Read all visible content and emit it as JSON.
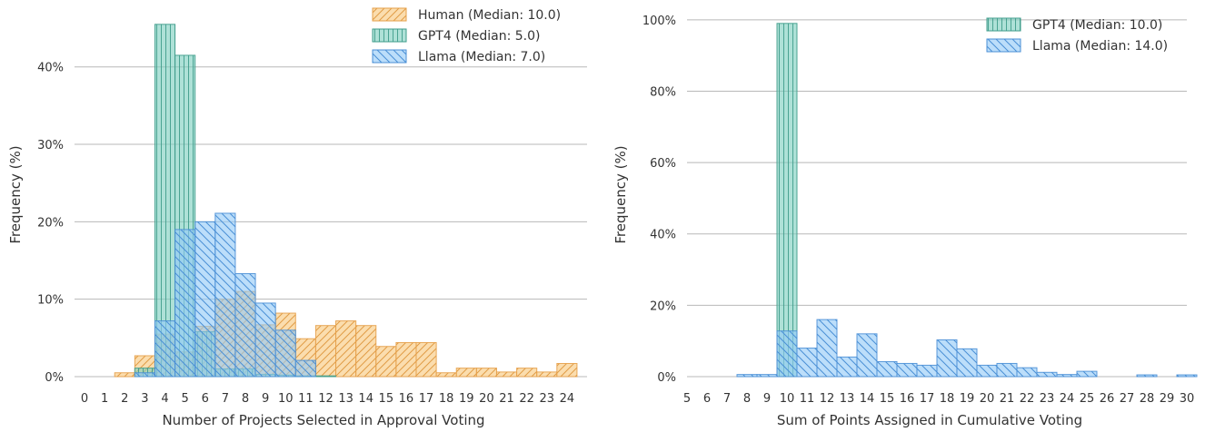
{
  "chart_data": [
    {
      "type": "bar",
      "xlabel": "Number of Projects Selected in Approval Voting",
      "ylabel": "Frequency (%)",
      "xticks": [
        0,
        1,
        2,
        3,
        4,
        5,
        6,
        7,
        8,
        9,
        10,
        11,
        12,
        13,
        14,
        15,
        16,
        17,
        18,
        19,
        20,
        21,
        22,
        23,
        24
      ],
      "yticks": [
        0,
        10,
        20,
        30,
        40
      ],
      "ytick_labels": [
        "0%",
        "10%",
        "20%",
        "30%",
        "40%"
      ],
      "xlim": [
        -0.5,
        25
      ],
      "ylim": [
        0,
        47
      ],
      "grid": "horizontal",
      "legend_position": "top-right",
      "series": [
        {
          "name": "Human (Median: 10.0)",
          "hatch": "diagonal-up",
          "fill": "#f9c87d",
          "edge": "#e6a04a",
          "x": [
            2,
            3,
            4,
            5,
            6,
            7,
            8,
            9,
            10,
            11,
            12,
            13,
            14,
            15,
            16,
            17,
            18,
            19,
            20,
            21,
            22,
            23,
            24
          ],
          "values": [
            0.5,
            2.7,
            5.5,
            3.2,
            6.5,
            10,
            11,
            6.7,
            8.2,
            4.9,
            6.6,
            7.2,
            6.6,
            3.9,
            4.4,
            4.4,
            0.5,
            1.1,
            1.1,
            0.6,
            1.1,
            0.6,
            1.7
          ]
        },
        {
          "name": "GPT4 (Median: 5.0)",
          "hatch": "vertical",
          "fill": "#7dcfbf",
          "edge": "#3f9c8b",
          "x": [
            3,
            4,
            5,
            6,
            7,
            8,
            9,
            10,
            11,
            12
          ],
          "values": [
            1.1,
            45.5,
            41.5,
            5.8,
            1,
            1,
            0.3,
            0.2,
            0.1,
            0.1
          ]
        },
        {
          "name": "Llama (Median: 7.0)",
          "hatch": "diagonal-down",
          "fill": "#93c9f7",
          "edge": "#4a8fd6",
          "x": [
            3,
            4,
            5,
            6,
            7,
            8,
            9,
            10,
            11
          ],
          "values": [
            0.5,
            7.2,
            19,
            20,
            21.1,
            13.3,
            9.5,
            6,
            2.1
          ]
        }
      ]
    },
    {
      "type": "bar",
      "xlabel": "Sum of Points Assigned in Cumulative Voting",
      "ylabel": "Frequency (%)",
      "xticks": [
        5,
        6,
        7,
        8,
        9,
        10,
        11,
        12,
        13,
        14,
        15,
        16,
        17,
        18,
        19,
        20,
        21,
        22,
        23,
        24,
        25,
        26,
        27,
        28,
        29,
        30
      ],
      "yticks": [
        0,
        20,
        40,
        60,
        80,
        100
      ],
      "ytick_labels": [
        "0%",
        "20%",
        "40%",
        "60%",
        "80%",
        "100%"
      ],
      "xlim": [
        5,
        30
      ],
      "ylim": [
        0,
        102
      ],
      "grid": "horizontal",
      "legend_position": "top-right",
      "series": [
        {
          "name": "GPT4 (Median: 10.0)",
          "hatch": "vertical",
          "fill": "#7dcfbf",
          "edge": "#3f9c8b",
          "bins": [
            [
              9.5,
              10.5
            ]
          ],
          "values": [
            99
          ]
        },
        {
          "name": "Llama (Median: 14.0)",
          "hatch": "diagonal-down",
          "fill": "#93c9f7",
          "edge": "#4a8fd6",
          "bins": [
            [
              7.5,
              8.5
            ],
            [
              8.5,
              9.5
            ],
            [
              9.5,
              10.5
            ],
            [
              10.5,
              11.5
            ],
            [
              11.5,
              12.5
            ],
            [
              12.5,
              13.5
            ],
            [
              13.5,
              14.5
            ],
            [
              14.5,
              15.5
            ],
            [
              15.5,
              16.5
            ],
            [
              16.5,
              17.5
            ],
            [
              17.5,
              18.5
            ],
            [
              18.5,
              19.5
            ],
            [
              19.5,
              20.5
            ],
            [
              20.5,
              21.5
            ],
            [
              21.5,
              22.5
            ],
            [
              22.5,
              23.5
            ],
            [
              23.5,
              24.5
            ],
            [
              24.5,
              25.5
            ],
            [
              27.5,
              28.5
            ],
            [
              29.5,
              30.5
            ]
          ],
          "values": [
            0.6,
            0.6,
            12.8,
            8,
            16,
            5.5,
            12,
            4.2,
            3.7,
            3.2,
            10.3,
            7.8,
            3.2,
            3.7,
            2.5,
            1.2,
            0.6,
            1.5,
            0.5,
            0.5
          ]
        }
      ]
    }
  ]
}
